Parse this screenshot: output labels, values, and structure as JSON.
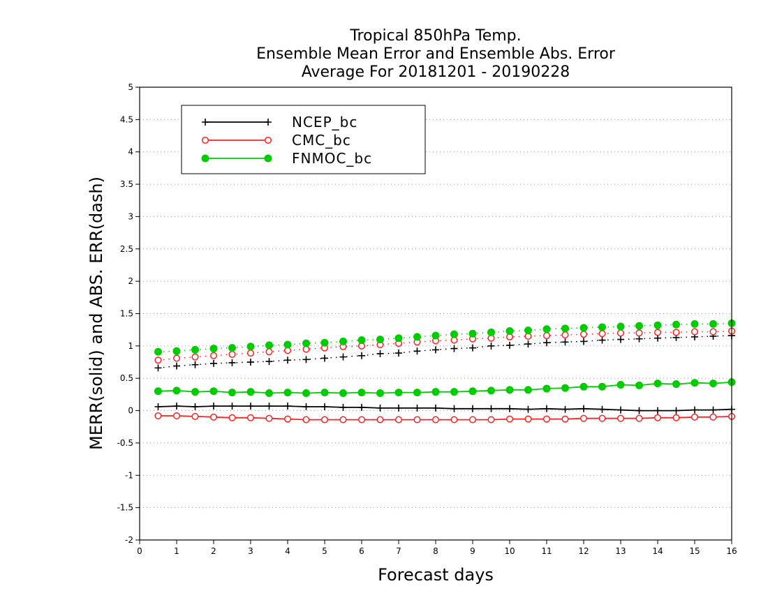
{
  "chart_data": {
    "type": "line",
    "title": [
      "Tropical 850hPa Temp.",
      "Ensemble Mean Error and Ensemble Abs. Error",
      "Average For 20181201 - 20190228"
    ],
    "xlabel": "Forecast days",
    "ylabel": "MERR(solid) and ABS. ERR(dash)",
    "xlim": [
      0,
      16
    ],
    "ylim": [
      -2,
      5
    ],
    "xticks": [
      "0",
      "1",
      "2",
      "3",
      "4",
      "5",
      "6",
      "7",
      "8",
      "9",
      "10",
      "11",
      "12",
      "13",
      "14",
      "15",
      "16"
    ],
    "yticks": [
      "-2",
      "-1.5",
      "-1",
      "-0.5",
      "0",
      "0.5",
      "1",
      "1.5",
      "2",
      "2.5",
      "3",
      "3.5",
      "4",
      "4.5",
      "5"
    ],
    "grid": true,
    "legend_position": "top-left",
    "x": [
      0.5,
      1,
      1.5,
      2,
      2.5,
      3,
      3.5,
      4,
      4.5,
      5,
      5.5,
      6,
      6.5,
      7,
      7.5,
      8,
      8.5,
      9,
      9.5,
      10,
      10.5,
      11,
      11.5,
      12,
      12.5,
      13,
      13.5,
      14,
      14.5,
      15,
      15.5,
      16
    ],
    "series": [
      {
        "name": "NCEP_bc",
        "color": "#000000",
        "marker": "plus",
        "merr": [
          0.06,
          0.07,
          0.06,
          0.07,
          0.07,
          0.07,
          0.07,
          0.07,
          0.06,
          0.06,
          0.05,
          0.05,
          0.04,
          0.04,
          0.04,
          0.04,
          0.03,
          0.03,
          0.03,
          0.03,
          0.02,
          0.03,
          0.02,
          0.03,
          0.02,
          0.01,
          0.0,
          0.0,
          0.0,
          0.01,
          0.01,
          0.02
        ],
        "abs_err": [
          0.66,
          0.69,
          0.71,
          0.73,
          0.74,
          0.75,
          0.76,
          0.78,
          0.79,
          0.81,
          0.83,
          0.85,
          0.88,
          0.89,
          0.92,
          0.94,
          0.96,
          0.97,
          1.0,
          1.01,
          1.03,
          1.05,
          1.06,
          1.07,
          1.09,
          1.1,
          1.11,
          1.12,
          1.13,
          1.14,
          1.15,
          1.16
        ]
      },
      {
        "name": "CMC_bc",
        "color": "#ff2020",
        "marker": "open-circle",
        "merr": [
          -0.08,
          -0.08,
          -0.09,
          -0.1,
          -0.11,
          -0.11,
          -0.12,
          -0.13,
          -0.14,
          -0.14,
          -0.14,
          -0.14,
          -0.14,
          -0.14,
          -0.14,
          -0.14,
          -0.14,
          -0.14,
          -0.14,
          -0.13,
          -0.13,
          -0.13,
          -0.13,
          -0.12,
          -0.12,
          -0.12,
          -0.12,
          -0.11,
          -0.11,
          -0.1,
          -0.1,
          -0.09
        ],
        "abs_err": [
          0.78,
          0.81,
          0.83,
          0.85,
          0.87,
          0.89,
          0.91,
          0.93,
          0.95,
          0.97,
          0.99,
          1.0,
          1.02,
          1.04,
          1.06,
          1.08,
          1.09,
          1.11,
          1.12,
          1.14,
          1.15,
          1.16,
          1.17,
          1.18,
          1.19,
          1.2,
          1.2,
          1.21,
          1.21,
          1.22,
          1.22,
          1.23
        ]
      },
      {
        "name": "FNMOC_bc",
        "color": "#00cc00",
        "marker": "filled-circle",
        "merr": [
          0.3,
          0.31,
          0.29,
          0.3,
          0.28,
          0.29,
          0.27,
          0.28,
          0.27,
          0.28,
          0.27,
          0.28,
          0.27,
          0.28,
          0.28,
          0.29,
          0.29,
          0.3,
          0.31,
          0.32,
          0.32,
          0.34,
          0.35,
          0.37,
          0.37,
          0.4,
          0.39,
          0.42,
          0.41,
          0.43,
          0.42,
          0.44
        ],
        "abs_err": [
          0.91,
          0.92,
          0.94,
          0.96,
          0.97,
          0.99,
          1.01,
          1.02,
          1.04,
          1.05,
          1.07,
          1.09,
          1.1,
          1.12,
          1.14,
          1.16,
          1.18,
          1.19,
          1.21,
          1.23,
          1.24,
          1.26,
          1.27,
          1.28,
          1.29,
          1.3,
          1.31,
          1.32,
          1.33,
          1.34,
          1.34,
          1.35
        ]
      }
    ]
  }
}
